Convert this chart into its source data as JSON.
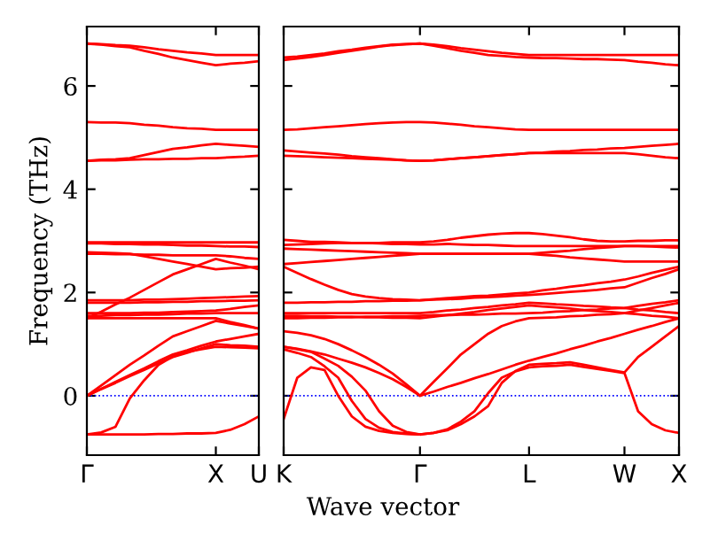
{
  "chart_data": [
    {
      "type": "line",
      "ylabel": "Frequency (THz)",
      "categories": [
        "Γ",
        null,
        null,
        null,
        null,
        null,
        null,
        null,
        null,
        "X",
        null,
        null,
        "U"
      ],
      "ylim": [
        -1.15,
        7.15
      ],
      "yticks": [
        0,
        2,
        4,
        6
      ],
      "grid": false,
      "marker": "none",
      "line_style": "solid",
      "ref_lines": [
        {
          "axis": "y",
          "value": 0,
          "color": "#0000ff",
          "line_style": "dotted"
        }
      ],
      "series": [
        {
          "color": "#ff0000",
          "values": [
            6.82,
            6.81,
            6.79,
            6.78,
            6.75,
            6.71,
            6.68,
            6.65,
            6.63,
            6.6,
            6.6,
            6.6,
            6.6
          ]
        },
        {
          "color": "#ff0000",
          "values": [
            6.82,
            6.8,
            6.77,
            6.75,
            6.68,
            6.62,
            6.55,
            6.5,
            6.45,
            6.4,
            6.43,
            6.45,
            6.48
          ]
        },
        {
          "color": "#ff0000",
          "values": [
            5.3,
            5.29,
            5.29,
            5.28,
            5.25,
            5.23,
            5.2,
            5.18,
            5.17,
            5.15,
            5.15,
            5.15,
            5.15
          ]
        },
        {
          "color": "#ff0000",
          "values": [
            4.55,
            4.57,
            4.58,
            4.6,
            4.66,
            4.72,
            4.78,
            4.81,
            4.85,
            4.88,
            4.86,
            4.84,
            4.82
          ]
        },
        {
          "color": "#ff0000",
          "values": [
            4.55,
            4.56,
            4.56,
            4.57,
            4.58,
            4.58,
            4.59,
            4.59,
            4.6,
            4.6,
            4.62,
            4.63,
            4.65
          ]
        },
        {
          "color": "#ff0000",
          "values": [
            2.97,
            2.97,
            2.97,
            2.97,
            2.97,
            2.97,
            2.97,
            2.97,
            2.97,
            2.97,
            2.97,
            2.97,
            2.97
          ]
        },
        {
          "color": "#ff0000",
          "values": [
            2.95,
            2.95,
            2.94,
            2.94,
            2.93,
            2.93,
            2.92,
            2.91,
            2.91,
            2.9,
            2.89,
            2.89,
            2.88
          ]
        },
        {
          "color": "#ff0000",
          "values": [
            2.78,
            2.77,
            2.76,
            2.75,
            2.7,
            2.65,
            2.6,
            2.55,
            2.5,
            2.45,
            2.47,
            2.48,
            2.5
          ]
        },
        {
          "color": "#ff0000",
          "values": [
            2.75,
            2.75,
            2.74,
            2.74,
            2.73,
            2.73,
            2.72,
            2.72,
            2.72,
            2.72,
            2.7,
            2.67,
            2.65
          ]
        },
        {
          "color": "#ff0000",
          "values": [
            1.5,
            1.63,
            1.77,
            1.9,
            2.05,
            2.2,
            2.35,
            2.45,
            2.55,
            2.65,
            2.58,
            2.52,
            2.45
          ]
        },
        {
          "color": "#ff0000",
          "values": [
            1.85,
            1.85,
            1.85,
            1.85,
            1.86,
            1.86,
            1.87,
            1.88,
            1.89,
            1.9,
            1.91,
            1.92,
            1.93
          ]
        },
        {
          "color": "#ff0000",
          "values": [
            1.8,
            1.8,
            1.8,
            1.8,
            1.81,
            1.81,
            1.82,
            1.82,
            1.83,
            1.83,
            1.84,
            1.84,
            1.85
          ]
        },
        {
          "color": "#ff0000",
          "values": [
            1.6,
            1.6,
            1.6,
            1.6,
            1.61,
            1.61,
            1.62,
            1.63,
            1.64,
            1.65,
            1.68,
            1.72,
            1.75
          ]
        },
        {
          "color": "#ff0000",
          "values": [
            1.55,
            1.55,
            1.56,
            1.56,
            1.57,
            1.57,
            1.58,
            1.59,
            1.59,
            1.6,
            1.6,
            1.6,
            1.6
          ]
        },
        {
          "color": "#ff0000",
          "values": [
            1.5,
            1.5,
            1.5,
            1.5,
            1.5,
            1.5,
            1.5,
            1.5,
            1.5,
            1.5,
            1.43,
            1.37,
            1.3
          ]
        },
        {
          "color": "#ff0000",
          "values": [
            0,
            0.2,
            0.4,
            0.6,
            0.78,
            0.97,
            1.15,
            1.25,
            1.35,
            1.45,
            1.4,
            1.35,
            1.3
          ]
        },
        {
          "color": "#ff0000",
          "values": [
            0,
            0.13,
            0.27,
            0.4,
            0.53,
            0.67,
            0.8,
            0.88,
            0.97,
            1.05,
            1.1,
            1.15,
            1.2
          ]
        },
        {
          "color": "#ff0000",
          "values": [
            0,
            0.13,
            0.25,
            0.38,
            0.5,
            0.63,
            0.75,
            0.83,
            0.92,
            1.0,
            0.98,
            0.97,
            0.95
          ]
        },
        {
          "color": "#ff0000",
          "values": [
            -0.75,
            -0.71,
            -0.6,
            -0.05,
            0.3,
            0.6,
            0.76,
            0.85,
            0.9,
            0.95,
            0.94,
            0.93,
            0.92
          ]
        },
        {
          "color": "#ff0000",
          "values": [
            -0.75,
            -0.75,
            -0.75,
            -0.75,
            -0.75,
            -0.74,
            -0.74,
            -0.73,
            -0.73,
            -0.72,
            -0.66,
            -0.55,
            -0.4
          ]
        }
      ]
    },
    {
      "type": "line",
      "xlabel": "Wave vector",
      "categories": [
        "K",
        null,
        null,
        null,
        null,
        null,
        null,
        null,
        null,
        null,
        "Γ",
        null,
        null,
        null,
        null,
        null,
        null,
        null,
        "L",
        null,
        null,
        null,
        null,
        null,
        null,
        "W",
        null,
        null,
        null,
        "X"
      ],
      "ylim": [
        -1.15,
        7.15
      ],
      "yticks": [
        0,
        2,
        4,
        6
      ],
      "tick_labels": "x",
      "grid": false,
      "marker": "none",
      "line_style": "solid",
      "ref_lines": [
        {
          "axis": "y",
          "value": 0,
          "color": "#0000ff",
          "line_style": "dotted"
        }
      ],
      "series": [
        {
          "color": "#ff0000",
          "values": [
            6.5,
            6.53,
            6.56,
            6.6,
            6.64,
            6.68,
            6.72,
            6.76,
            6.79,
            6.81,
            6.82,
            6.8,
            6.77,
            6.73,
            6.7,
            6.67,
            6.64,
            6.62,
            6.6,
            6.6,
            6.6,
            6.6,
            6.6,
            6.6,
            6.6,
            6.6,
            6.6,
            6.6,
            6.6,
            6.6
          ]
        },
        {
          "color": "#ff0000",
          "values": [
            6.55,
            6.57,
            6.6,
            6.63,
            6.67,
            6.7,
            6.74,
            6.77,
            6.8,
            6.81,
            6.82,
            6.78,
            6.73,
            6.68,
            6.64,
            6.6,
            6.58,
            6.56,
            6.55,
            6.54,
            6.54,
            6.53,
            6.52,
            6.52,
            6.51,
            6.5,
            6.47,
            6.45,
            6.42,
            6.4
          ]
        },
        {
          "color": "#ff0000",
          "values": [
            5.15,
            5.16,
            5.18,
            5.2,
            5.22,
            5.24,
            5.26,
            5.28,
            5.29,
            5.3,
            5.3,
            5.29,
            5.27,
            5.25,
            5.22,
            5.2,
            5.18,
            5.16,
            5.15,
            5.15,
            5.15,
            5.15,
            5.15,
            5.15,
            5.15,
            5.15,
            5.15,
            5.15,
            5.15,
            5.15
          ]
        },
        {
          "color": "#ff0000",
          "values": [
            4.75,
            4.73,
            4.71,
            4.69,
            4.67,
            4.64,
            4.62,
            4.6,
            4.58,
            4.56,
            4.55,
            4.56,
            4.58,
            4.6,
            4.62,
            4.64,
            4.66,
            4.68,
            4.7,
            4.71,
            4.73,
            4.74,
            4.76,
            4.77,
            4.79,
            4.8,
            4.82,
            4.84,
            4.86,
            4.88
          ]
        },
        {
          "color": "#ff0000",
          "values": [
            4.65,
            4.64,
            4.63,
            4.62,
            4.61,
            4.6,
            4.59,
            4.58,
            4.57,
            4.56,
            4.55,
            4.56,
            4.58,
            4.6,
            4.62,
            4.64,
            4.66,
            4.68,
            4.7,
            4.7,
            4.7,
            4.7,
            4.7,
            4.7,
            4.7,
            4.7,
            4.68,
            4.65,
            4.62,
            4.6
          ]
        },
        {
          "color": "#ff0000",
          "values": [
            2.92,
            2.93,
            2.94,
            2.95,
            2.96,
            2.96,
            2.96,
            2.96,
            2.97,
            2.97,
            2.97,
            2.99,
            3.02,
            3.06,
            3.09,
            3.12,
            3.14,
            3.15,
            3.15,
            3.13,
            3.1,
            3.07,
            3.03,
            3.0,
            2.99,
            2.99,
            3.0,
            3.0,
            3.01,
            3.01
          ]
        },
        {
          "color": "#ff0000",
          "values": [
            3.02,
            3.0,
            2.98,
            2.98,
            2.97,
            2.96,
            2.96,
            2.95,
            2.94,
            2.94,
            2.93,
            2.93,
            2.94,
            2.93,
            2.92,
            2.92,
            2.91,
            2.9,
            2.9,
            2.9,
            2.9,
            2.9,
            2.9,
            2.9,
            2.9,
            2.9,
            2.9,
            2.89,
            2.88,
            2.87
          ]
        },
        {
          "color": "#ff0000",
          "values": [
            2.85,
            2.84,
            2.83,
            2.82,
            2.81,
            2.8,
            2.79,
            2.78,
            2.77,
            2.76,
            2.75,
            2.75,
            2.75,
            2.75,
            2.75,
            2.75,
            2.75,
            2.75,
            2.75,
            2.77,
            2.79,
            2.81,
            2.84,
            2.86,
            2.88,
            2.9,
            2.9,
            2.9,
            2.9,
            2.9
          ]
        },
        {
          "color": "#ff0000",
          "values": [
            2.55,
            2.57,
            2.59,
            2.61,
            2.63,
            2.65,
            2.67,
            2.69,
            2.71,
            2.73,
            2.75,
            2.75,
            2.75,
            2.75,
            2.75,
            2.75,
            2.75,
            2.75,
            2.75,
            2.73,
            2.71,
            2.68,
            2.66,
            2.64,
            2.62,
            2.6,
            2.6,
            2.6,
            2.6,
            2.6
          ]
        },
        {
          "color": "#ff0000",
          "values": [
            2.5,
            2.38,
            2.26,
            2.15,
            2.05,
            1.97,
            1.92,
            1.89,
            1.87,
            1.86,
            1.85,
            1.86,
            1.87,
            1.88,
            1.9,
            1.91,
            1.92,
            1.94,
            1.95,
            1.97,
            1.99,
            2.01,
            2.03,
            2.05,
            2.08,
            2.1,
            2.19,
            2.28,
            2.36,
            2.45
          ]
        },
        {
          "color": "#ff0000",
          "values": [
            1.8,
            1.8,
            1.81,
            1.81,
            1.82,
            1.82,
            1.83,
            1.83,
            1.84,
            1.84,
            1.85,
            1.87,
            1.89,
            1.91,
            1.93,
            1.94,
            1.96,
            1.98,
            2.0,
            2.04,
            2.07,
            2.11,
            2.14,
            2.18,
            2.21,
            2.25,
            2.31,
            2.38,
            2.44,
            2.5
          ]
        },
        {
          "color": "#ff0000",
          "values": [
            1.6,
            1.6,
            1.6,
            1.6,
            1.6,
            1.6,
            1.6,
            1.6,
            1.6,
            1.6,
            1.6,
            1.62,
            1.65,
            1.67,
            1.7,
            1.72,
            1.75,
            1.77,
            1.8,
            1.79,
            1.77,
            1.76,
            1.74,
            1.73,
            1.71,
            1.7,
            1.67,
            1.65,
            1.62,
            1.6
          ]
        },
        {
          "color": "#ff0000",
          "values": [
            1.55,
            1.55,
            1.54,
            1.54,
            1.53,
            1.53,
            1.52,
            1.52,
            1.51,
            1.51,
            1.5,
            1.53,
            1.56,
            1.59,
            1.62,
            1.66,
            1.69,
            1.72,
            1.75,
            1.73,
            1.71,
            1.69,
            1.66,
            1.64,
            1.62,
            1.6,
            1.58,
            1.55,
            1.53,
            1.5
          ]
        },
        {
          "color": "#ff0000",
          "values": [
            1.5,
            1.5,
            1.51,
            1.51,
            1.52,
            1.52,
            1.53,
            1.53,
            1.54,
            1.54,
            1.55,
            1.56,
            1.56,
            1.57,
            1.57,
            1.58,
            1.59,
            1.59,
            1.6,
            1.61,
            1.63,
            1.64,
            1.66,
            1.67,
            1.69,
            1.7,
            1.74,
            1.78,
            1.81,
            1.85
          ]
        },
        {
          "color": "#ff0000",
          "values": [
            1.25,
            1.22,
            1.17,
            1.1,
            1.0,
            0.88,
            0.75,
            0.6,
            0.43,
            0.22,
            0,
            0.27,
            0.53,
            0.8,
            1.0,
            1.2,
            1.35,
            1.44,
            1.5,
            1.51,
            1.52,
            1.54,
            1.55,
            1.57,
            1.58,
            1.6,
            1.65,
            1.7,
            1.75,
            1.8
          ]
        },
        {
          "color": "#ff0000",
          "values": [
            0.95,
            0.91,
            0.86,
            0.8,
            0.72,
            0.64,
            0.55,
            0.44,
            0.32,
            0.17,
            0,
            0.08,
            0.17,
            0.25,
            0.34,
            0.42,
            0.51,
            0.6,
            0.68,
            0.75,
            0.82,
            0.9,
            0.97,
            1.05,
            1.12,
            1.2,
            1.28,
            1.35,
            1.43,
            1.5
          ]
        },
        {
          "color": "#ff0000",
          "values": [
            -0.45,
            0.35,
            0.55,
            0.5,
            0.0,
            -0.4,
            -0.6,
            -0.68,
            -0.72,
            -0.74,
            -0.75,
            -0.72,
            -0.65,
            -0.5,
            -0.3,
            0.05,
            0.35,
            0.47,
            0.55,
            0.57,
            0.58,
            0.6,
            0.56,
            0.52,
            0.48,
            0.44,
            -0.3,
            -0.55,
            -0.67,
            -0.72
          ]
        },
        {
          "color": "#ff0000",
          "values": [
            0.9,
            0.83,
            0.75,
            0.57,
            0.35,
            -0.1,
            -0.45,
            -0.62,
            -0.7,
            -0.73,
            -0.75,
            -0.72,
            -0.67,
            -0.55,
            -0.4,
            -0.2,
            0.25,
            0.48,
            0.6,
            0.62,
            0.63,
            0.65,
            0.6,
            0.55,
            0.5,
            0.45,
            0.75,
            0.95,
            1.15,
            1.35
          ]
        },
        {
          "color": "#ff0000",
          "values": [
            0.95,
            0.9,
            0.85,
            0.72,
            0.58,
            0.37,
            0.1,
            -0.3,
            -0.58,
            -0.7,
            -0.75,
            null,
            null,
            null,
            null,
            null,
            null,
            null,
            null,
            null,
            null,
            null,
            null,
            null,
            null,
            null,
            null,
            null,
            null,
            null
          ]
        }
      ]
    }
  ]
}
